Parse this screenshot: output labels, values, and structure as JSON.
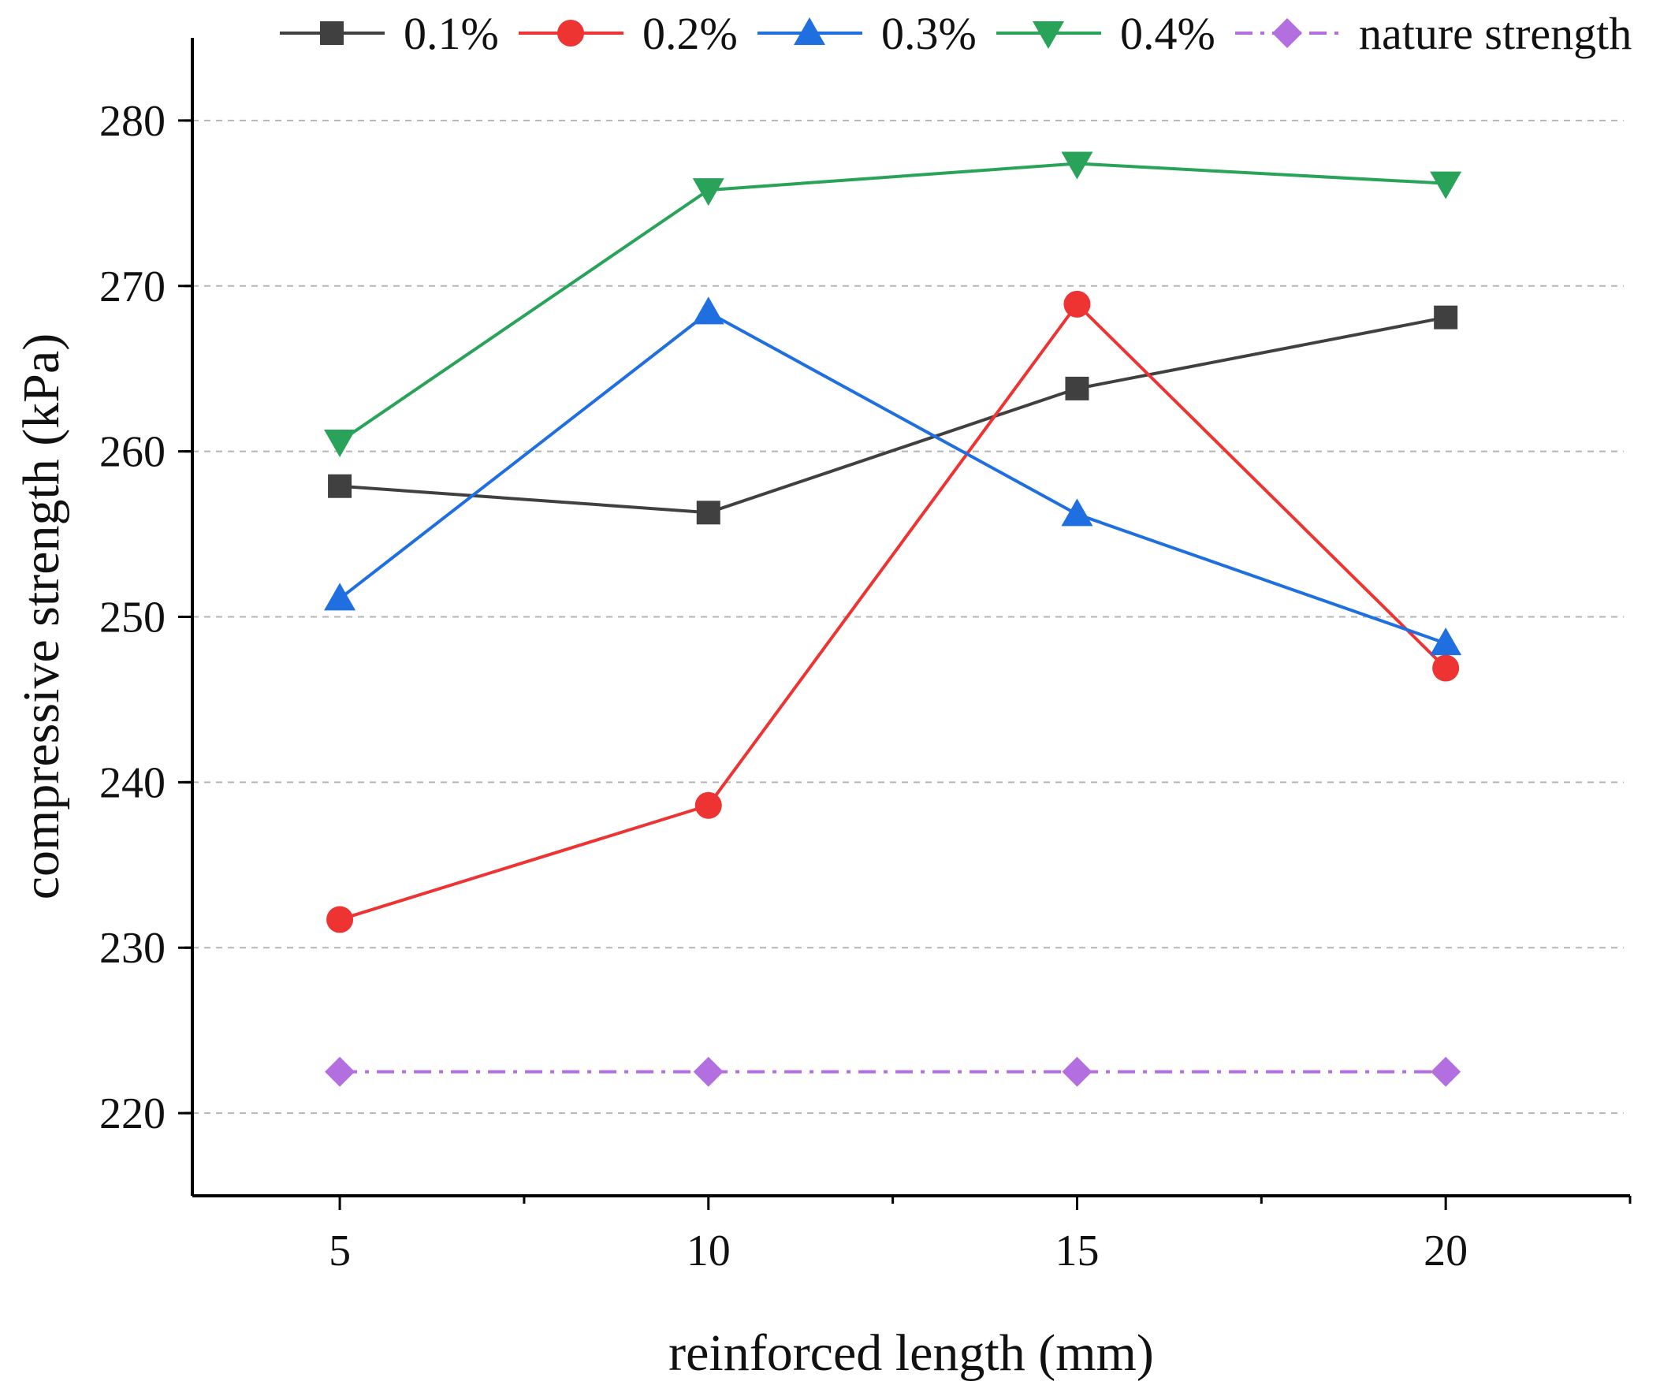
{
  "chart_data": {
    "type": "line",
    "title": "",
    "xlabel": "reinforced length (mm)",
    "ylabel": "compressive strength (kPa)",
    "x": [
      5,
      10,
      15,
      20
    ],
    "xlim": [
      3,
      22.5
    ],
    "ylim": [
      215,
      285
    ],
    "xticks": [
      5,
      10,
      15,
      20
    ],
    "yticks": [
      220,
      230,
      240,
      250,
      260,
      270,
      280
    ],
    "grid": "horizontal dashed",
    "legend_position": "top",
    "series": [
      {
        "name": "0.1%",
        "color": "#404040",
        "marker": "square",
        "line": "solid",
        "values": [
          257.9,
          256.3,
          263.8,
          268.1
        ]
      },
      {
        "name": "0.2%",
        "color": "#ee3333",
        "marker": "circle",
        "line": "solid",
        "values": [
          231.7,
          238.6,
          268.9,
          246.9
        ]
      },
      {
        "name": "0.3%",
        "color": "#1f6fe0",
        "marker": "triangle-up",
        "line": "solid",
        "values": [
          251.1,
          268.4,
          256.2,
          248.4
        ]
      },
      {
        "name": "0.4%",
        "color": "#2aa35a",
        "marker": "triangle-down",
        "line": "solid",
        "values": [
          260.6,
          275.8,
          277.4,
          276.2
        ]
      },
      {
        "name": "nature strength",
        "color": "#b36ee0",
        "marker": "diamond",
        "line": "dash-dot",
        "values": [
          222.5,
          222.5,
          222.5,
          222.5
        ]
      }
    ]
  }
}
